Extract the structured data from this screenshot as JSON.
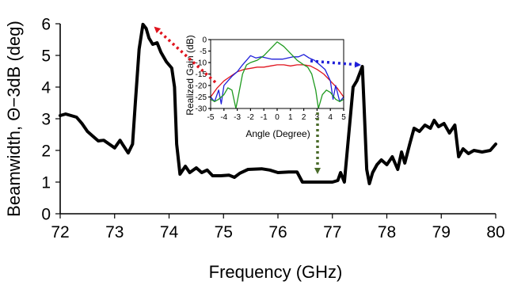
{
  "chart_data": [
    {
      "type": "line",
      "xlabel": "Frequency (GHz)",
      "ylabel": "Beamwidth, Θ−3dB (deg)",
      "xlim": [
        72,
        80
      ],
      "ylim": [
        0,
        6
      ],
      "xticks": [
        "72",
        "73",
        "74",
        "75",
        "76",
        "77",
        "78",
        "79",
        "80"
      ],
      "yticks": [
        "0",
        "1",
        "2",
        "3",
        "4",
        "5",
        "6"
      ],
      "grid": false,
      "series": [
        {
          "color": "#000000",
          "points": [
            [
              72.0,
              3.1
            ],
            [
              72.1,
              3.15
            ],
            [
              72.2,
              3.1
            ],
            [
              72.3,
              3.05
            ],
            [
              72.4,
              2.85
            ],
            [
              72.5,
              2.6
            ],
            [
              72.6,
              2.45
            ],
            [
              72.7,
              2.3
            ],
            [
              72.8,
              2.32
            ],
            [
              72.9,
              2.2
            ],
            [
              73.0,
              2.08
            ],
            [
              73.1,
              2.32
            ],
            [
              73.15,
              2.18
            ],
            [
              73.25,
              1.92
            ],
            [
              73.33,
              2.2
            ],
            [
              73.38,
              3.5
            ],
            [
              73.45,
              5.2
            ],
            [
              73.52,
              5.98
            ],
            [
              73.58,
              5.85
            ],
            [
              73.63,
              5.55
            ],
            [
              73.7,
              5.35
            ],
            [
              73.78,
              5.4
            ],
            [
              73.85,
              5.1
            ],
            [
              73.95,
              4.8
            ],
            [
              74.05,
              4.6
            ],
            [
              74.1,
              4.0
            ],
            [
              74.14,
              2.2
            ],
            [
              74.2,
              1.25
            ],
            [
              74.3,
              1.5
            ],
            [
              74.38,
              1.3
            ],
            [
              74.5,
              1.45
            ],
            [
              74.6,
              1.3
            ],
            [
              74.7,
              1.38
            ],
            [
              74.8,
              1.2
            ],
            [
              74.95,
              1.2
            ],
            [
              75.1,
              1.22
            ],
            [
              75.2,
              1.15
            ],
            [
              75.3,
              1.28
            ],
            [
              75.45,
              1.4
            ],
            [
              75.7,
              1.42
            ],
            [
              75.85,
              1.38
            ],
            [
              76.0,
              1.3
            ],
            [
              76.2,
              1.32
            ],
            [
              76.35,
              1.32
            ],
            [
              76.45,
              1.0
            ],
            [
              76.7,
              1.0
            ],
            [
              77.0,
              1.0
            ],
            [
              77.1,
              1.05
            ],
            [
              77.15,
              1.3
            ],
            [
              77.22,
              1.0
            ],
            [
              77.3,
              2.5
            ],
            [
              77.38,
              4.0
            ],
            [
              77.45,
              4.2
            ],
            [
              77.55,
              4.65
            ],
            [
              77.58,
              3.5
            ],
            [
              77.63,
              1.4
            ],
            [
              77.68,
              0.95
            ],
            [
              77.74,
              1.3
            ],
            [
              77.82,
              1.55
            ],
            [
              77.9,
              1.7
            ],
            [
              78.0,
              1.55
            ],
            [
              78.1,
              1.8
            ],
            [
              78.2,
              1.4
            ],
            [
              78.27,
              1.95
            ],
            [
              78.33,
              1.6
            ],
            [
              78.42,
              2.2
            ],
            [
              78.5,
              2.7
            ],
            [
              78.6,
              2.6
            ],
            [
              78.7,
              2.8
            ],
            [
              78.8,
              2.7
            ],
            [
              78.87,
              2.95
            ],
            [
              78.95,
              2.75
            ],
            [
              79.05,
              2.85
            ],
            [
              79.15,
              2.55
            ],
            [
              79.25,
              2.8
            ],
            [
              79.32,
              1.8
            ],
            [
              79.4,
              2.05
            ],
            [
              79.5,
              1.9
            ],
            [
              79.6,
              2.0
            ],
            [
              79.75,
              1.95
            ],
            [
              79.9,
              2.0
            ],
            [
              80.0,
              2.2
            ]
          ]
        }
      ]
    },
    {
      "type": "line",
      "xlabel": "Angle (Degree)",
      "ylabel": "Realized Gain (dB)",
      "xlim": [
        -5,
        5
      ],
      "ylim": [
        -30,
        0
      ],
      "xticks": [
        "-5",
        "-4",
        "-3",
        "-2",
        "-1",
        "0",
        "1",
        "2",
        "3",
        "4",
        "5"
      ],
      "yticks": [
        "0",
        "-5",
        "-10",
        "-15",
        "-20",
        "-25",
        "-30"
      ],
      "grid": false,
      "series": [
        {
          "color": "#e0141e",
          "x": [
            -5,
            -4.5,
            -4,
            -3.5,
            -3,
            -2.5,
            -2,
            -1.5,
            -1,
            -0.5,
            0,
            0.5,
            1,
            1.5,
            2,
            2.5,
            3,
            3.5,
            4,
            4.5,
            5
          ],
          "y": [
            -25,
            -21,
            -18,
            -16,
            -14,
            -13,
            -12.5,
            -12,
            -12,
            -11.5,
            -11,
            -11,
            -11.5,
            -11,
            -11,
            -11.5,
            -13,
            -15,
            -18,
            -21,
            -25
          ]
        },
        {
          "color": "#1f1fd9",
          "x": [
            -5,
            -4.7,
            -4.4,
            -4.2,
            -4,
            -3.7,
            -3.4,
            -3,
            -2.6,
            -2.3,
            -2,
            -1.6,
            -1.2,
            -0.8,
            -0.4,
            0,
            0.4,
            0.8,
            1.2,
            1.6,
            2,
            2.4,
            2.8,
            3.2,
            3.6,
            4,
            4.2,
            4.4,
            4.7,
            5
          ],
          "y": [
            -25,
            -27,
            -22,
            -28,
            -20,
            -18,
            -16,
            -14,
            -11,
            -9,
            -7,
            -8,
            -7.5,
            -8,
            -8.5,
            -8.5,
            -8.5,
            -8,
            -7.5,
            -7.5,
            -6.5,
            -8,
            -9,
            -11,
            -13,
            -18,
            -26,
            -20,
            -27,
            -25
          ]
        },
        {
          "color": "#1f9a1f",
          "x": [
            -5,
            -4.7,
            -4.4,
            -4,
            -3.7,
            -3.4,
            -3.1,
            -2.9,
            -2.6,
            -2.3,
            -2,
            -1.5,
            -1,
            -0.5,
            0,
            0.5,
            1,
            1.5,
            2,
            2.3,
            2.6,
            2.9,
            3.1,
            3.4,
            3.7,
            4,
            4.4,
            4.7,
            5
          ],
          "y": [
            -26,
            -27,
            -26,
            -24,
            -21,
            -22,
            -30,
            -24,
            -15,
            -11,
            -10,
            -9,
            -7,
            -4,
            -1,
            -3,
            -6,
            -9,
            -11,
            -12,
            -15,
            -22,
            -30,
            -24,
            -22,
            -23,
            -26,
            -27,
            -26
          ]
        }
      ]
    }
  ]
}
